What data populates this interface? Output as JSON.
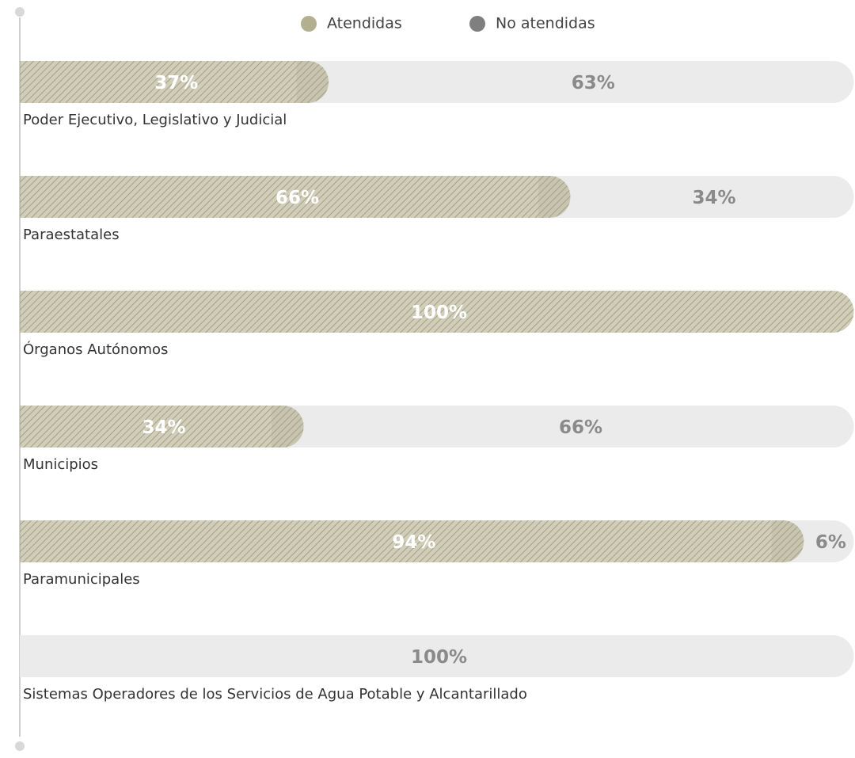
{
  "chart_data": {
    "type": "stacked-bar-horizontal",
    "categories": [
      "Poder Ejecutivo, Legislativo y Judicial",
      "Paraestatales",
      "Órganos Autónomos",
      "Municipios",
      "Paramunicipales",
      "Sistemas Operadores de los Servicios de Agua Potable y Alcantarillado"
    ],
    "series": [
      {
        "name": "Atendidas",
        "color": "#aaa683",
        "legend_color": "#b4b08f",
        "label_color": "#ffffff",
        "values": [
          37,
          66,
          100,
          34,
          94,
          0
        ],
        "value_labels": [
          "37%",
          "66%",
          "100%",
          "34%",
          "94%",
          null
        ]
      },
      {
        "name": "No atendidas",
        "color": "#ebebeb",
        "legend_color": "#7f7f7f",
        "label_color": "#8a8a8a",
        "values": [
          63,
          34,
          0,
          66,
          6,
          100
        ],
        "value_labels": [
          "63%",
          "34%",
          null,
          "66%",
          "6%",
          "100%"
        ]
      }
    ],
    "xlim": [
      0,
      100
    ]
  }
}
